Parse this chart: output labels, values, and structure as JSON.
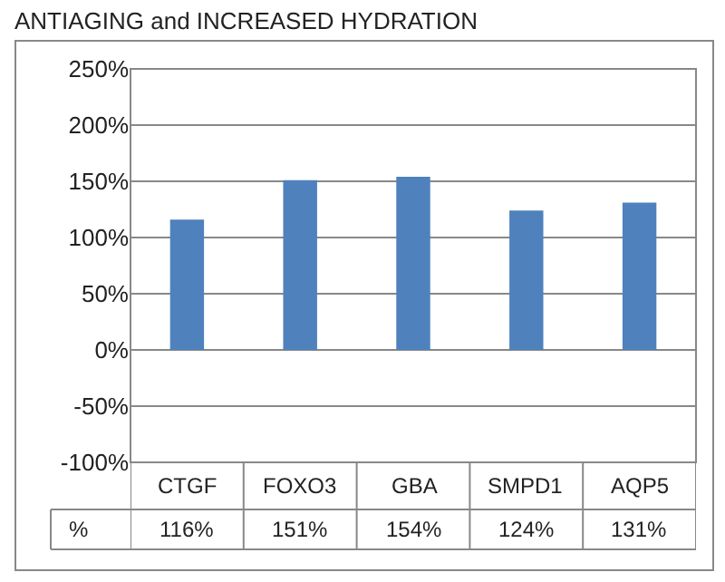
{
  "chart_data": {
    "type": "bar",
    "title": "ANTIAGING and INCREASED HYDRATION",
    "categories": [
      "CTGF",
      "FOXO3",
      "GBA",
      "SMPD1",
      "AQP5"
    ],
    "values": [
      116,
      151,
      154,
      124,
      131
    ],
    "value_labels": [
      "116%",
      "151%",
      "154%",
      "124%",
      "131%"
    ],
    "color": "#4f81bd",
    "ylim": [
      -100,
      250
    ],
    "yticks": [
      {
        "value": -100,
        "label": "-100%"
      },
      {
        "value": -50,
        "label": "-50%"
      },
      {
        "value": 0,
        "label": "0%"
      },
      {
        "value": 50,
        "label": "50%"
      },
      {
        "value": 100,
        "label": "100%"
      },
      {
        "value": 150,
        "label": "150%"
      },
      {
        "value": 200,
        "label": "200%"
      },
      {
        "value": 250,
        "label": "250%"
      }
    ],
    "grid": "y",
    "annotations": [
      "%"
    ]
  }
}
